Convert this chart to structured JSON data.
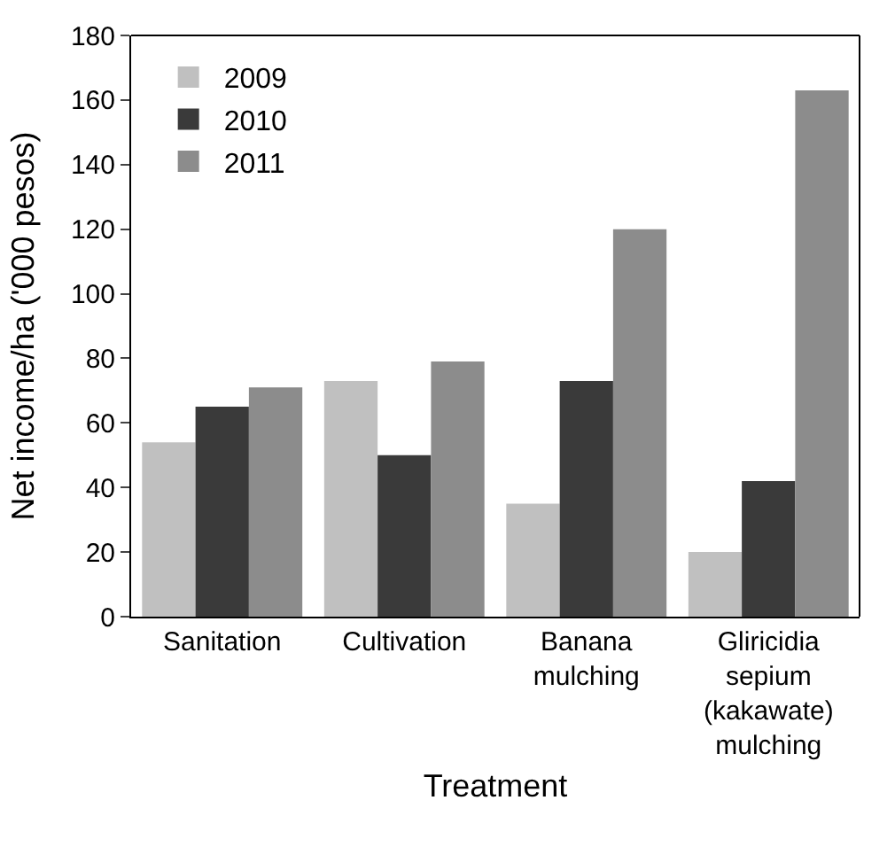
{
  "chart_data": {
    "type": "bar",
    "xlabel": "Treatment",
    "ylabel": "Net income/ha ('000 pesos)",
    "categories": [
      "Sanitation",
      "Cultivation",
      "Banana mulching",
      "Gliricidia sepium (kakawate) mulching"
    ],
    "series": [
      {
        "name": "2009",
        "color": "#c0c0c0",
        "values": [
          54,
          73,
          35,
          20
        ]
      },
      {
        "name": "2010",
        "color": "#3a3a3a",
        "values": [
          65,
          50,
          73,
          42
        ]
      },
      {
        "name": "2011",
        "color": "#8c8c8c",
        "values": [
          71,
          79,
          120,
          163
        ]
      }
    ],
    "ylim": [
      0,
      180
    ],
    "yticks": [
      0,
      20,
      40,
      60,
      80,
      100,
      120,
      140,
      160,
      180
    ],
    "grid": false,
    "legend": "top left"
  }
}
